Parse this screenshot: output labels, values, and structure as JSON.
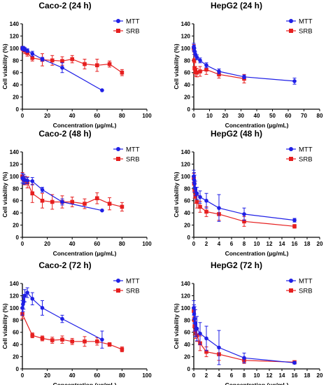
{
  "chart_data": [
    {
      "type": "line",
      "title": "Caco-2 (24 h)",
      "xlabel": "Concentration (µg/mL)",
      "ylabel": "Cell viability (%)",
      "xlim": [
        0,
        100
      ],
      "xticks": [
        0,
        20,
        40,
        60,
        80,
        100
      ],
      "ylim": [
        0,
        140
      ],
      "yticks": [
        0,
        20,
        40,
        60,
        80,
        100,
        120,
        140
      ],
      "legend": "top-right",
      "series": [
        {
          "name": "MTT",
          "color": "#1f1fe6",
          "marker": "circle",
          "x": [
            0,
            0.5,
            1,
            2,
            4,
            8,
            16,
            32,
            64
          ],
          "y": [
            100,
            100,
            99,
            98,
            96,
            91,
            82,
            68,
            31
          ],
          "err": [
            3,
            3,
            3,
            3,
            3,
            4,
            3,
            8,
            0
          ]
        },
        {
          "name": "SRB",
          "color": "#e61f1f",
          "marker": "square",
          "x": [
            0,
            0.5,
            1,
            2,
            4,
            8,
            16,
            24,
            32,
            40,
            50,
            60,
            70,
            80
          ],
          "y": [
            100,
            99,
            98,
            96,
            92,
            84,
            81,
            80,
            79,
            82,
            74,
            72,
            74,
            60
          ],
          "err": [
            3,
            3,
            4,
            5,
            5,
            5,
            10,
            8,
            7,
            6,
            8,
            10,
            5,
            5
          ]
        }
      ]
    },
    {
      "type": "line",
      "title": "HepG2 (24 h)",
      "xlabel": "Concentration (µg/mL)",
      "ylabel": "Cell viability (%)",
      "xlim": [
        0,
        80
      ],
      "xticks": [
        0,
        10,
        20,
        30,
        40,
        50,
        60,
        70,
        80
      ],
      "ylim": [
        0,
        140
      ],
      "yticks": [
        0,
        20,
        40,
        60,
        80,
        100,
        120,
        140
      ],
      "legend": "top-right",
      "series": [
        {
          "name": "MTT",
          "color": "#1f1fe6",
          "marker": "circle",
          "x": [
            0,
            0.25,
            0.5,
            1,
            2,
            4,
            8,
            16,
            32,
            64
          ],
          "y": [
            102,
            100,
            95,
            90,
            85,
            80,
            72,
            62,
            53,
            46
          ],
          "err": [
            6,
            5,
            5,
            4,
            4,
            4,
            4,
            4,
            3,
            5
          ]
        },
        {
          "name": "SRB",
          "color": "#e61f1f",
          "marker": "square",
          "x": [
            0,
            0.25,
            0.5,
            1,
            2,
            4,
            8,
            16,
            32
          ],
          "y": [
            100,
            80,
            67,
            62,
            60,
            62,
            65,
            57,
            50
          ],
          "err": [
            6,
            10,
            9,
            8,
            7,
            8,
            8,
            6,
            7
          ]
        }
      ]
    },
    {
      "type": "line",
      "title": "Caco-2 (48 h)",
      "xlabel": "Concentration (µg/mL)",
      "ylabel": "Cell viability (%)",
      "xlim": [
        0,
        100
      ],
      "xticks": [
        0,
        20,
        40,
        60,
        80,
        100
      ],
      "ylim": [
        0,
        140
      ],
      "yticks": [
        0,
        20,
        40,
        60,
        80,
        100,
        120,
        140
      ],
      "legend": "top-right",
      "series": [
        {
          "name": "MTT",
          "color": "#1f1fe6",
          "marker": "circle",
          "x": [
            0,
            1,
            2,
            4,
            8,
            16,
            32,
            64
          ],
          "y": [
            97,
            95,
            94,
            93,
            92,
            78,
            58,
            44
          ],
          "err": [
            8,
            8,
            6,
            5,
            6,
            4,
            5,
            0
          ]
        },
        {
          "name": "SRB",
          "color": "#e61f1f",
          "marker": "square",
          "x": [
            0,
            1,
            2,
            4,
            8,
            16,
            24,
            32,
            40,
            50,
            60,
            70,
            80
          ],
          "y": [
            100,
            95,
            93,
            90,
            72,
            60,
            58,
            58,
            58,
            55,
            64,
            55,
            50
          ],
          "err": [
            6,
            8,
            7,
            9,
            15,
            12,
            12,
            10,
            8,
            8,
            9,
            10,
            7
          ]
        }
      ]
    },
    {
      "type": "line",
      "title": "HepG2 (48 h)",
      "xlabel": "Concentration (µg/mL)",
      "ylabel": "Cell viability (%)",
      "xlim": [
        0,
        20
      ],
      "xticks": [
        0,
        2,
        4,
        6,
        8,
        10,
        12,
        14,
        16,
        18,
        20
      ],
      "ylim": [
        0,
        140
      ],
      "yticks": [
        0,
        20,
        40,
        60,
        80,
        100,
        120,
        140
      ],
      "legend": "top-right",
      "series": [
        {
          "name": "MTT",
          "color": "#1f1fe6",
          "marker": "circle",
          "x": [
            0,
            0.06,
            0.125,
            0.25,
            0.5,
            1,
            2,
            4,
            8,
            16
          ],
          "y": [
            100,
            94,
            88,
            80,
            72,
            66,
            60,
            48,
            38,
            28
          ],
          "err": [
            10,
            12,
            14,
            12,
            10,
            10,
            12,
            22,
            10,
            3
          ]
        },
        {
          "name": "SRB",
          "color": "#e61f1f",
          "marker": "square",
          "x": [
            0,
            0.06,
            0.125,
            0.25,
            0.5,
            1,
            2,
            4,
            8,
            16
          ],
          "y": [
            97,
            88,
            76,
            68,
            58,
            50,
            42,
            38,
            26,
            18
          ],
          "err": [
            8,
            10,
            12,
            12,
            10,
            9,
            8,
            10,
            8,
            3
          ]
        }
      ]
    },
    {
      "type": "line",
      "title": "Caco-2 (72 h)",
      "xlabel": "Concentration (µg/mL)",
      "ylabel": "Cell viability (%)",
      "xlim": [
        0,
        100
      ],
      "xticks": [
        0,
        20,
        40,
        60,
        80,
        100
      ],
      "ylim": [
        0,
        140
      ],
      "yticks": [
        0,
        20,
        40,
        60,
        80,
        100,
        120,
        140
      ],
      "legend": "top-right",
      "series": [
        {
          "name": "MTT",
          "color": "#1f1fe6",
          "marker": "circle",
          "x": [
            0,
            0.5,
            1,
            2,
            4,
            8,
            16,
            32,
            64
          ],
          "y": [
            100,
            106,
            110,
            120,
            125,
            115,
            100,
            82,
            48
          ],
          "err": [
            12,
            12,
            12,
            10,
            8,
            10,
            12,
            6,
            14
          ]
        },
        {
          "name": "SRB",
          "color": "#e61f1f",
          "marker": "square",
          "x": [
            0,
            8,
            16,
            24,
            32,
            40,
            50,
            60,
            70,
            80
          ],
          "y": [
            90,
            55,
            50,
            47,
            48,
            45,
            45,
            45,
            40,
            32
          ],
          "err": [
            8,
            4,
            4,
            5,
            6,
            5,
            8,
            6,
            3,
            4
          ]
        }
      ]
    },
    {
      "type": "line",
      "title": "HepG2 (72 h)",
      "xlabel": "Concentration (µg/mL)",
      "ylabel": "Cell viability (%)",
      "xlim": [
        0,
        20
      ],
      "xticks": [
        0,
        2,
        4,
        6,
        8,
        10,
        12,
        14,
        16,
        18,
        20
      ],
      "ylim": [
        0,
        140
      ],
      "yticks": [
        0,
        20,
        40,
        60,
        80,
        100,
        120,
        140
      ],
      "legend": "top-right",
      "series": [
        {
          "name": "MTT",
          "color": "#1f1fe6",
          "marker": "circle",
          "x": [
            0,
            0.06,
            0.125,
            0.25,
            0.5,
            1,
            2,
            4,
            8,
            16
          ],
          "y": [
            100,
            90,
            82,
            75,
            66,
            58,
            50,
            35,
            18,
            10
          ],
          "err": [
            12,
            15,
            20,
            22,
            20,
            18,
            20,
            28,
            8,
            2
          ]
        },
        {
          "name": "SRB",
          "color": "#e61f1f",
          "marker": "square",
          "x": [
            0,
            0.06,
            0.125,
            0.25,
            0.5,
            1,
            2,
            4,
            8,
            16
          ],
          "y": [
            95,
            80,
            70,
            62,
            55,
            42,
            28,
            24,
            14,
            11
          ],
          "err": [
            10,
            12,
            14,
            12,
            10,
            12,
            8,
            10,
            5,
            2
          ]
        }
      ]
    }
  ]
}
